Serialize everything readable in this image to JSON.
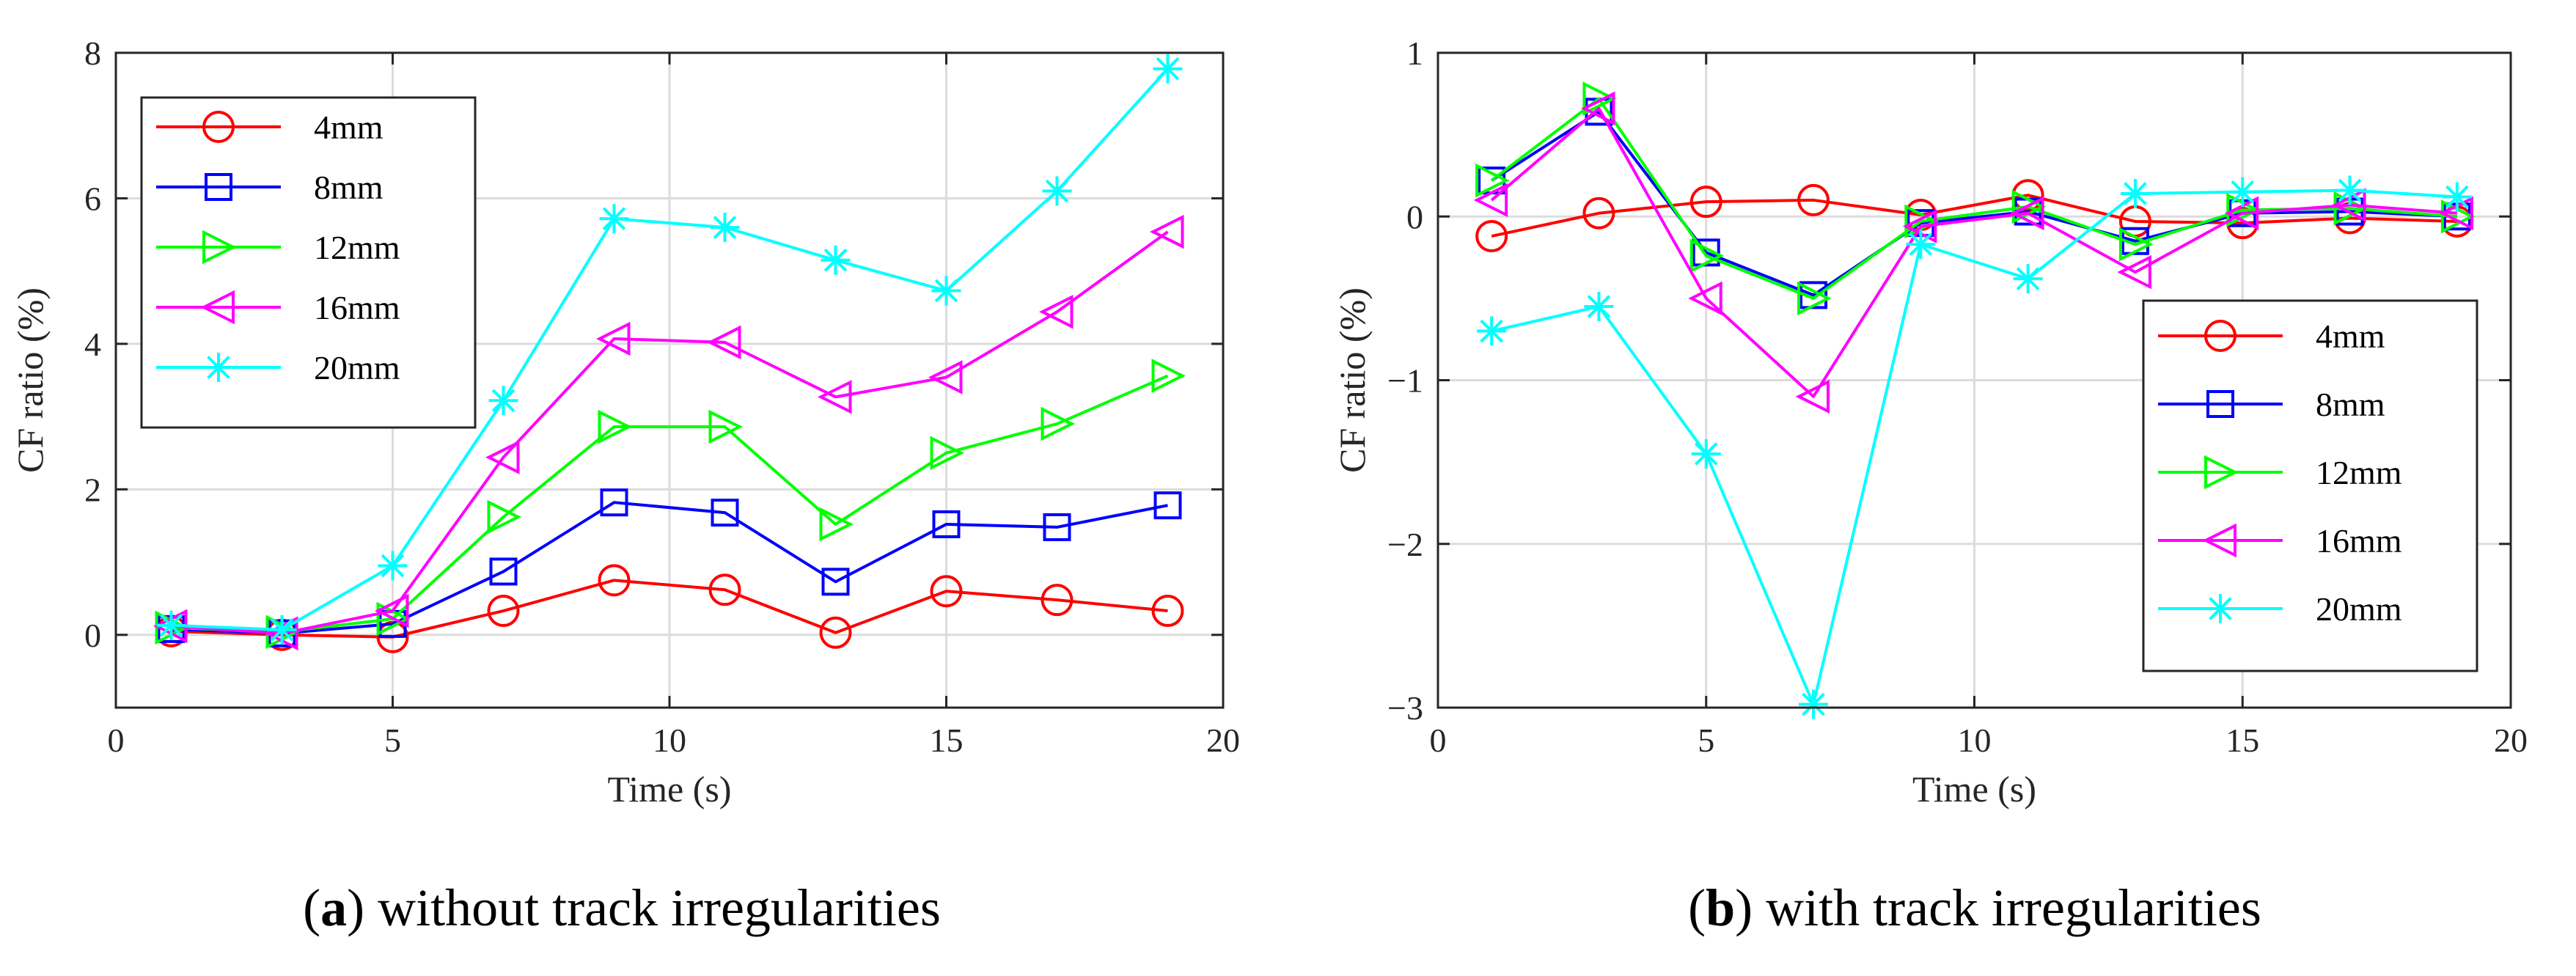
{
  "chart_data": [
    {
      "id": "a",
      "type": "line",
      "caption_letter": "a",
      "caption_text": ") without track irregularities",
      "caption_open": "(",
      "xlabel": "Time (s)",
      "ylabel": "CF ratio (%)",
      "xlim": [
        0,
        20
      ],
      "ylim": [
        -1,
        8
      ],
      "xticks": [
        0,
        5,
        10,
        15,
        20
      ],
      "yticks": [
        0,
        2,
        4,
        6,
        8
      ],
      "ytick_labels": [
        "0",
        "2",
        "4",
        "6",
        "8"
      ],
      "grid": true,
      "legend_position": "top-left",
      "x": [
        1,
        3,
        5,
        7,
        9,
        11,
        13,
        15,
        17,
        19
      ],
      "series": [
        {
          "name": "4mm",
          "color": "#ff0000",
          "marker": "circle",
          "values": [
            0.05,
            0.0,
            -0.03,
            0.33,
            0.75,
            0.62,
            0.03,
            0.6,
            0.48,
            0.33
          ]
        },
        {
          "name": "8mm",
          "color": "#0000ff",
          "marker": "square",
          "values": [
            0.08,
            0.02,
            0.15,
            0.87,
            1.82,
            1.68,
            0.73,
            1.52,
            1.48,
            1.78
          ]
        },
        {
          "name": "12mm",
          "color": "#00ff00",
          "marker": "triangle-right",
          "values": [
            0.1,
            0.04,
            0.22,
            1.62,
            2.86,
            2.86,
            1.52,
            2.5,
            2.9,
            3.56
          ]
        },
        {
          "name": "16mm",
          "color": "#ff00ff",
          "marker": "triangle-left",
          "values": [
            0.12,
            0.02,
            0.33,
            2.44,
            4.07,
            4.02,
            3.27,
            3.54,
            4.44,
            5.54
          ]
        },
        {
          "name": "20mm",
          "color": "#00ffff",
          "marker": "asterisk",
          "values": [
            0.13,
            0.07,
            0.95,
            3.22,
            5.72,
            5.6,
            5.15,
            4.73,
            6.1,
            7.78
          ]
        }
      ]
    },
    {
      "id": "b",
      "type": "line",
      "caption_letter": "b",
      "caption_text": ") with track irregularities",
      "caption_open": "(",
      "xlabel": "Time (s)",
      "ylabel": "CF ratio (%)",
      "xlim": [
        0,
        20
      ],
      "ylim": [
        -3,
        1
      ],
      "xticks": [
        0,
        5,
        10,
        15,
        20
      ],
      "yticks": [
        -3,
        -2,
        -1,
        0,
        1
      ],
      "ytick_labels": [
        "−3",
        "−2",
        "−1",
        "0",
        "1"
      ],
      "grid": true,
      "legend_position": "bottom-right",
      "x": [
        1,
        3,
        5,
        7,
        9,
        11,
        13,
        15,
        17,
        19
      ],
      "series": [
        {
          "name": "4mm",
          "color": "#ff0000",
          "marker": "circle",
          "values": [
            -0.12,
            0.02,
            0.09,
            0.1,
            0.01,
            0.13,
            -0.03,
            -0.04,
            -0.01,
            -0.03
          ]
        },
        {
          "name": "8mm",
          "color": "#0000ff",
          "marker": "square",
          "values": [
            0.22,
            0.64,
            -0.22,
            -0.48,
            -0.04,
            0.03,
            -0.15,
            0.02,
            0.03,
            0.0
          ]
        },
        {
          "name": "12mm",
          "color": "#00ff00",
          "marker": "triangle-right",
          "values": [
            0.22,
            0.72,
            -0.24,
            -0.5,
            -0.03,
            0.06,
            -0.17,
            0.04,
            0.05,
            0.0
          ]
        },
        {
          "name": "16mm",
          "color": "#ff00ff",
          "marker": "triangle-left",
          "values": [
            0.1,
            0.66,
            -0.5,
            -1.1,
            -0.06,
            0.02,
            -0.34,
            0.02,
            0.07,
            0.02
          ]
        },
        {
          "name": "20mm",
          "color": "#00ffff",
          "marker": "asterisk",
          "values": [
            -0.7,
            -0.55,
            -1.45,
            -2.98,
            -0.17,
            -0.38,
            0.14,
            0.15,
            0.16,
            0.12
          ]
        }
      ]
    }
  ]
}
